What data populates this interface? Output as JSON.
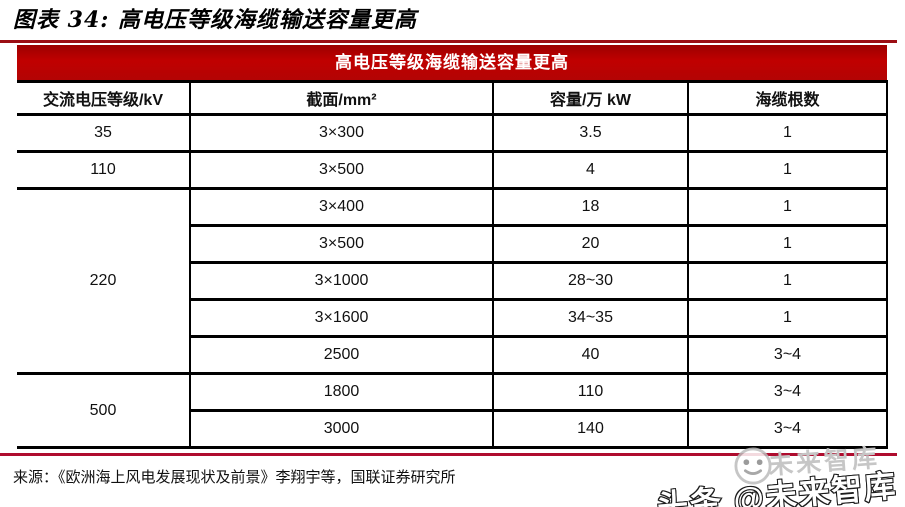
{
  "title": "图表 34:  高电压等级海缆输送容量更高",
  "table": {
    "banner": "高电压等级海缆输送容量更高",
    "columns": [
      "交流电压等级/kV",
      "截面/mm²",
      "容量/万 kW",
      "海缆根数"
    ],
    "groups": [
      {
        "voltage": "35",
        "rows": [
          [
            "3×300",
            "3.5",
            "1"
          ]
        ]
      },
      {
        "voltage": "110",
        "rows": [
          [
            "3×500",
            "4",
            "1"
          ]
        ]
      },
      {
        "voltage": "220",
        "rows": [
          [
            "3×400",
            "18",
            "1"
          ],
          [
            "3×500",
            "20",
            "1"
          ],
          [
            "3×1000",
            "28~30",
            "1"
          ],
          [
            "3×1600",
            "34~35",
            "1"
          ],
          [
            "2500",
            "40",
            "3~4"
          ]
        ]
      },
      {
        "voltage": "500",
        "rows": [
          [
            "1800",
            "110",
            "3~4"
          ],
          [
            "3000",
            "140",
            "3~4"
          ]
        ]
      }
    ]
  },
  "chart_data": {
    "type": "table",
    "title": "高电压等级海缆输送容量更高",
    "columns": [
      "交流电压等级/kV",
      "截面/mm²",
      "容量/万 kW",
      "海缆根数"
    ],
    "rows": [
      [
        "35",
        "3×300",
        "3.5",
        "1"
      ],
      [
        "110",
        "3×500",
        "4",
        "1"
      ],
      [
        "220",
        "3×400",
        "18",
        "1"
      ],
      [
        "220",
        "3×500",
        "20",
        "1"
      ],
      [
        "220",
        "3×1000",
        "28~30",
        "1"
      ],
      [
        "220",
        "3×1600",
        "34~35",
        "1"
      ],
      [
        "220",
        "2500",
        "40",
        "3~4"
      ],
      [
        "500",
        "1800",
        "110",
        "3~4"
      ],
      [
        "500",
        "3000",
        "140",
        "3~4"
      ]
    ]
  },
  "source": "来源：《欧洲海上风电发展现状及前景》李翔宇等，国联证券研究所",
  "watermark": {
    "small": "未来智库",
    "large": "头条 @未来智库"
  },
  "colors": {
    "banner_bg": "#C00000",
    "banner_text": "#FFFFFF",
    "rule_top": "#9B0E14",
    "rule_bottom": "#AF0C2E",
    "border": "#000000"
  }
}
